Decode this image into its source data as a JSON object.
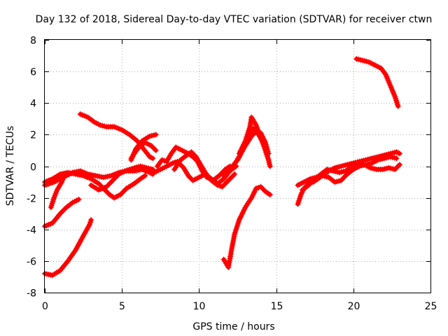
{
  "chart_data": {
    "type": "scatter",
    "title": "Day 132 of 2018, Sidereal Day-to-day VTEC variation (SDTVAR) for receiver ctwn",
    "xlabel": "GPS time / hours",
    "ylabel": "SDTVAR / TECUs",
    "xlim": [
      0,
      25
    ],
    "ylim": [
      -8,
      8
    ],
    "xticks": [
      0,
      5,
      10,
      15,
      20,
      25
    ],
    "yticks": [
      -8,
      -6,
      -4,
      -2,
      0,
      2,
      4,
      6,
      8
    ],
    "grid": true,
    "marker": "+",
    "color": "#ff0000",
    "series": [
      {
        "name": "s1",
        "points": [
          [
            0.0,
            -6.8
          ],
          [
            0.5,
            -6.9
          ],
          [
            1.0,
            -6.6
          ],
          [
            1.5,
            -6.0
          ],
          [
            2.0,
            -5.3
          ],
          [
            2.5,
            -4.4
          ],
          [
            2.9,
            -3.7
          ],
          [
            3.0,
            -3.4
          ]
        ]
      },
      {
        "name": "s2",
        "points": [
          [
            0.0,
            -3.8
          ],
          [
            0.5,
            -3.6
          ],
          [
            1.0,
            -3.0
          ],
          [
            1.4,
            -2.6
          ],
          [
            1.8,
            -2.3
          ],
          [
            2.2,
            -2.1
          ]
        ]
      },
      {
        "name": "s3",
        "points": [
          [
            0.4,
            -2.6
          ],
          [
            0.6,
            -2.0
          ],
          [
            0.8,
            -1.5
          ],
          [
            1.1,
            -1.0
          ],
          [
            1.3,
            -0.5
          ]
        ]
      },
      {
        "name": "s4",
        "points": [
          [
            0.0,
            -1.2
          ],
          [
            0.6,
            -1.0
          ],
          [
            1.2,
            -0.7
          ],
          [
            1.8,
            -0.4
          ],
          [
            2.3,
            -0.3
          ],
          [
            2.8,
            -0.5
          ],
          [
            3.3,
            -0.6
          ],
          [
            3.8,
            -0.7
          ],
          [
            4.3,
            -0.6
          ],
          [
            4.8,
            -0.4
          ],
          [
            5.3,
            -0.3
          ],
          [
            5.8,
            -0.3
          ],
          [
            6.3,
            -0.2
          ],
          [
            6.8,
            -0.4
          ],
          [
            7.0,
            -0.5
          ]
        ]
      },
      {
        "name": "s5",
        "points": [
          [
            0.0,
            -1.0
          ],
          [
            0.5,
            -0.8
          ],
          [
            1.0,
            -0.5
          ],
          [
            1.5,
            -0.4
          ],
          [
            2.0,
            -0.5
          ],
          [
            2.5,
            -0.6
          ],
          [
            3.0,
            -0.8
          ],
          [
            3.5,
            -1.1
          ],
          [
            3.8,
            -1.4
          ],
          [
            4.2,
            -1.8
          ],
          [
            4.5,
            -2.0
          ],
          [
            4.9,
            -1.8
          ],
          [
            5.3,
            -1.4
          ],
          [
            5.8,
            -1.1
          ],
          [
            6.2,
            -0.8
          ],
          [
            6.5,
            -0.6
          ]
        ]
      },
      {
        "name": "s6",
        "points": [
          [
            2.3,
            3.3
          ],
          [
            2.8,
            3.1
          ],
          [
            3.2,
            2.8
          ],
          [
            3.6,
            2.6
          ],
          [
            4.0,
            2.5
          ],
          [
            4.5,
            2.5
          ],
          [
            5.0,
            2.3
          ],
          [
            5.5,
            2.0
          ],
          [
            6.0,
            1.6
          ],
          [
            6.4,
            1.1
          ],
          [
            6.8,
            0.6
          ],
          [
            7.0,
            0.5
          ]
        ]
      },
      {
        "name": "s7",
        "points": [
          [
            3.0,
            -1.2
          ],
          [
            3.5,
            -1.5
          ],
          [
            4.0,
            -1.3
          ],
          [
            4.4,
            -0.9
          ],
          [
            4.8,
            -0.5
          ],
          [
            5.2,
            -0.3
          ],
          [
            5.5,
            -0.2
          ],
          [
            5.8,
            -0.1
          ],
          [
            6.2,
            0.0
          ],
          [
            6.6,
            -0.1
          ],
          [
            7.0,
            -0.2
          ]
        ]
      },
      {
        "name": "s8",
        "points": [
          [
            5.6,
            0.4
          ],
          [
            5.9,
            1.1
          ],
          [
            6.3,
            1.6
          ],
          [
            6.8,
            1.9
          ],
          [
            7.2,
            2.0
          ]
        ]
      },
      {
        "name": "s9",
        "points": [
          [
            5.6,
            0.5
          ],
          [
            5.8,
            0.8
          ],
          [
            6.1,
            1.2
          ],
          [
            6.5,
            1.5
          ],
          [
            6.9,
            1.3
          ],
          [
            7.2,
            1.0
          ]
        ]
      },
      {
        "name": "s10",
        "points": [
          [
            7.3,
            0.0
          ],
          [
            7.6,
            0.4
          ],
          [
            7.9,
            0.3
          ],
          [
            8.2,
            0.8
          ],
          [
            8.5,
            1.2
          ],
          [
            8.9,
            1.0
          ],
          [
            9.3,
            0.8
          ],
          [
            9.6,
            0.6
          ],
          [
            9.9,
            0.3
          ],
          [
            10.2,
            -0.3
          ],
          [
            10.5,
            -0.7
          ],
          [
            10.9,
            -0.9
          ],
          [
            11.3,
            -0.6
          ],
          [
            11.7,
            -0.2
          ],
          [
            12.0,
            0.0
          ]
        ]
      },
      {
        "name": "s11",
        "points": [
          [
            7.1,
            -0.4
          ],
          [
            7.5,
            -0.2
          ],
          [
            7.9,
            0.0
          ],
          [
            8.3,
            0.2
          ],
          [
            8.6,
            0.3
          ],
          [
            9.0,
            -0.1
          ],
          [
            9.3,
            -0.6
          ],
          [
            9.6,
            -0.9
          ],
          [
            10.0,
            -0.7
          ],
          [
            10.4,
            -0.5
          ],
          [
            10.8,
            -0.8
          ],
          [
            11.2,
            -1.1
          ],
          [
            11.6,
            -0.8
          ],
          [
            12.0,
            -0.3
          ],
          [
            12.4,
            0.0
          ]
        ]
      },
      {
        "name": "s12",
        "points": [
          [
            8.4,
            -0.2
          ],
          [
            8.8,
            0.4
          ],
          [
            9.2,
            0.7
          ],
          [
            9.5,
            0.9
          ],
          [
            9.8,
            0.6
          ],
          [
            10.1,
            0.1
          ],
          [
            10.4,
            -0.4
          ],
          [
            10.8,
            -0.9
          ],
          [
            11.2,
            -1.2
          ],
          [
            11.5,
            -1.3
          ],
          [
            11.9,
            -0.9
          ],
          [
            12.3,
            -0.5
          ]
        ]
      },
      {
        "name": "s13",
        "points": [
          [
            11.6,
            -0.6
          ],
          [
            12.0,
            -0.2
          ],
          [
            12.5,
            0.4
          ],
          [
            12.9,
            1.2
          ],
          [
            13.3,
            2.0
          ],
          [
            13.5,
            2.4
          ],
          [
            13.8,
            2.1
          ],
          [
            14.2,
            1.4
          ],
          [
            14.5,
            0.4
          ],
          [
            14.6,
            0.0
          ]
        ]
      },
      {
        "name": "s14",
        "points": [
          [
            12.2,
            0.0
          ],
          [
            12.6,
            0.6
          ],
          [
            13.0,
            1.3
          ],
          [
            13.4,
            1.9
          ],
          [
            13.7,
            2.2
          ],
          [
            14.0,
            2.1
          ],
          [
            14.3,
            1.5
          ],
          [
            14.5,
            0.8
          ]
        ]
      },
      {
        "name": "s15",
        "points": [
          [
            12.6,
            0.8
          ],
          [
            13.0,
            1.6
          ],
          [
            13.3,
            2.5
          ],
          [
            13.4,
            3.1
          ],
          [
            13.7,
            2.6
          ],
          [
            14.0,
            1.8
          ],
          [
            14.3,
            1.0
          ],
          [
            14.5,
            0.4
          ]
        ]
      },
      {
        "name": "s16",
        "points": [
          [
            11.6,
            -5.9
          ],
          [
            11.9,
            -6.4
          ],
          [
            12.1,
            -5.3
          ],
          [
            12.3,
            -4.3
          ],
          [
            12.6,
            -3.4
          ],
          [
            13.0,
            -2.6
          ],
          [
            13.4,
            -2.0
          ],
          [
            13.7,
            -1.4
          ],
          [
            14.0,
            -1.3
          ],
          [
            14.3,
            -1.6
          ],
          [
            14.6,
            -1.8
          ]
        ]
      },
      {
        "name": "s17",
        "points": [
          [
            16.4,
            -2.4
          ],
          [
            16.6,
            -1.8
          ],
          [
            16.8,
            -1.4
          ],
          [
            17.1,
            -1.1
          ],
          [
            17.4,
            -1.0
          ],
          [
            17.7,
            -0.8
          ],
          [
            18.0,
            -0.6
          ],
          [
            18.4,
            -0.3
          ],
          [
            18.8,
            -0.1
          ],
          [
            19.2,
            0.0
          ],
          [
            19.6,
            0.1
          ],
          [
            20.0,
            0.2
          ],
          [
            20.4,
            0.3
          ],
          [
            20.8,
            0.4
          ],
          [
            21.2,
            0.5
          ],
          [
            21.6,
            0.6
          ],
          [
            22.0,
            0.7
          ],
          [
            22.4,
            0.8
          ],
          [
            22.8,
            0.9
          ],
          [
            23.0,
            0.8
          ]
        ]
      },
      {
        "name": "s18",
        "points": [
          [
            16.4,
            -1.2
          ],
          [
            16.8,
            -1.0
          ],
          [
            17.2,
            -0.8
          ],
          [
            17.6,
            -0.7
          ],
          [
            18.0,
            -0.6
          ],
          [
            18.4,
            -0.7
          ],
          [
            18.8,
            -1.0
          ],
          [
            19.2,
            -0.9
          ],
          [
            19.6,
            -0.5
          ],
          [
            20.0,
            -0.2
          ],
          [
            20.4,
            0.0
          ],
          [
            20.8,
            0.1
          ],
          [
            21.2,
            0.2
          ],
          [
            21.6,
            0.4
          ],
          [
            22.0,
            0.5
          ],
          [
            22.4,
            0.6
          ],
          [
            22.8,
            0.5
          ]
        ]
      },
      {
        "name": "s19",
        "points": [
          [
            16.7,
            -1.5
          ],
          [
            17.1,
            -1.2
          ],
          [
            17.5,
            -0.8
          ],
          [
            17.9,
            -0.5
          ],
          [
            18.3,
            -0.2
          ],
          [
            18.7,
            -0.3
          ],
          [
            19.1,
            -0.4
          ],
          [
            19.5,
            -0.3
          ],
          [
            19.9,
            0.0
          ],
          [
            20.3,
            0.2
          ],
          [
            20.7,
            0.1
          ],
          [
            21.1,
            -0.1
          ],
          [
            21.5,
            -0.2
          ],
          [
            21.9,
            -0.2
          ],
          [
            22.3,
            -0.1
          ],
          [
            22.7,
            -0.2
          ],
          [
            23.0,
            0.1
          ]
        ]
      },
      {
        "name": "s20",
        "points": [
          [
            20.2,
            6.8
          ],
          [
            20.6,
            6.7
          ],
          [
            21.0,
            6.6
          ],
          [
            21.4,
            6.4
          ],
          [
            21.8,
            6.2
          ],
          [
            22.1,
            5.8
          ],
          [
            22.4,
            5.1
          ],
          [
            22.7,
            4.4
          ],
          [
            22.9,
            3.8
          ]
        ]
      }
    ]
  }
}
